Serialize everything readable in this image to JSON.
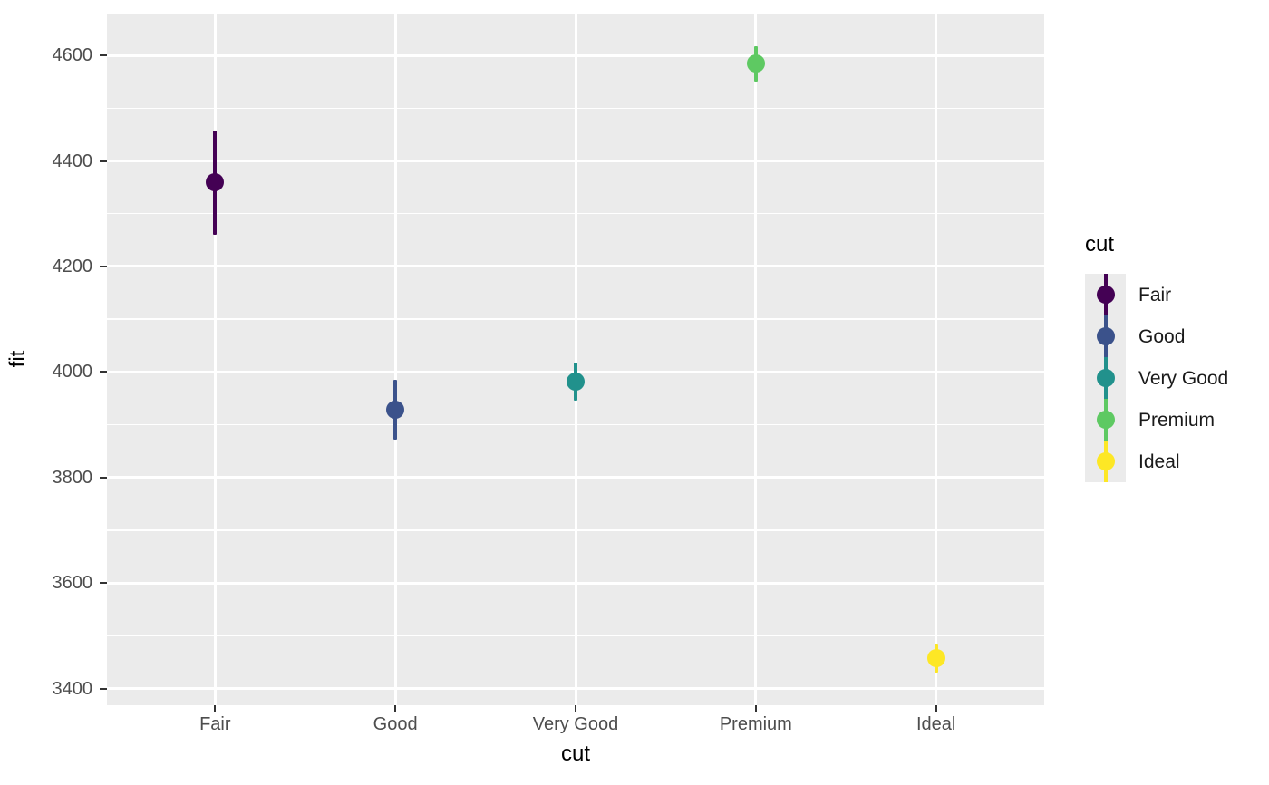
{
  "figure": {
    "background": "#FFFFFF",
    "panel_background": "#EBEBEB",
    "grid_color": "#FFFFFF",
    "tick_color": "#333333",
    "tick_label_color": "#4D4D4D",
    "title_color": "#000000"
  },
  "chart_data": {
    "type": "pointrange",
    "title": "",
    "xlabel": "cut",
    "ylabel": "fit",
    "legend_title": "cut",
    "legend_position": "right",
    "grid": true,
    "categories": [
      "Fair",
      "Good",
      "Very Good",
      "Premium",
      "Ideal"
    ],
    "points": [
      {
        "category": "Fair",
        "fit": 4358.8,
        "ymin": 4260.0,
        "ymax": 4457.5,
        "color": "#440154"
      },
      {
        "category": "Good",
        "fit": 3928.9,
        "ymin": 3872.3,
        "ymax": 3985.4,
        "color": "#3B528B"
      },
      {
        "category": "Very Good",
        "fit": 3981.8,
        "ymin": 3945.7,
        "ymax": 4017.8,
        "color": "#21918C"
      },
      {
        "category": "Premium",
        "fit": 4584.3,
        "ymin": 4550.5,
        "ymax": 4618.0,
        "color": "#5EC962"
      },
      {
        "category": "Ideal",
        "fit": 3457.5,
        "ymin": 3430.5,
        "ymax": 3484.5,
        "color": "#FDE725"
      }
    ],
    "y_ticks": [
      3400,
      3600,
      3800,
      4000,
      4200,
      4400,
      4600
    ],
    "y_minor_ticks": [
      3500,
      3700,
      3900,
      4100,
      4300,
      4500
    ],
    "ylim": [
      3369,
      4679
    ],
    "legend_items": [
      {
        "label": "Fair",
        "color": "#440154"
      },
      {
        "label": "Good",
        "color": "#3B528B"
      },
      {
        "label": "Very Good",
        "color": "#21918C"
      },
      {
        "label": "Premium",
        "color": "#5EC962"
      },
      {
        "label": "Ideal",
        "color": "#FDE725"
      }
    ]
  }
}
